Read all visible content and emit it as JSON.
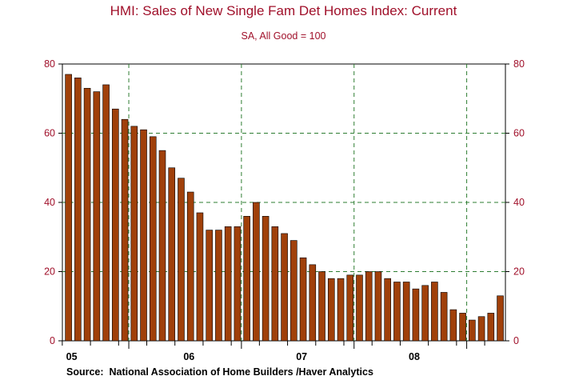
{
  "chart_data": {
    "type": "bar",
    "title": "HMI: Sales of New Single Fam Det Homes Index: Current",
    "subtitle": "SA, All Good = 100",
    "source": "Source:  National Association of Home Builders /Haver Analytics",
    "ylim": [
      0,
      80
    ],
    "y_ticks": [
      0,
      20,
      40,
      60,
      80
    ],
    "x_tick_labels": [
      "05",
      "06",
      "07",
      "08"
    ],
    "bar_color": "#a0400a",
    "title_color": "#a0102a",
    "grid": "dashed-green",
    "grid_color": "#2e7d32",
    "values": [
      77,
      76,
      73,
      72,
      74,
      67,
      64,
      62,
      61,
      59,
      55,
      50,
      47,
      43,
      37,
      32,
      32,
      33,
      33,
      36,
      40,
      36,
      33,
      31,
      29,
      24,
      22,
      20,
      18,
      18,
      19,
      19,
      20,
      20,
      18,
      17,
      17,
      15,
      16,
      17,
      14,
      9,
      8,
      6,
      7,
      8,
      13
    ]
  }
}
